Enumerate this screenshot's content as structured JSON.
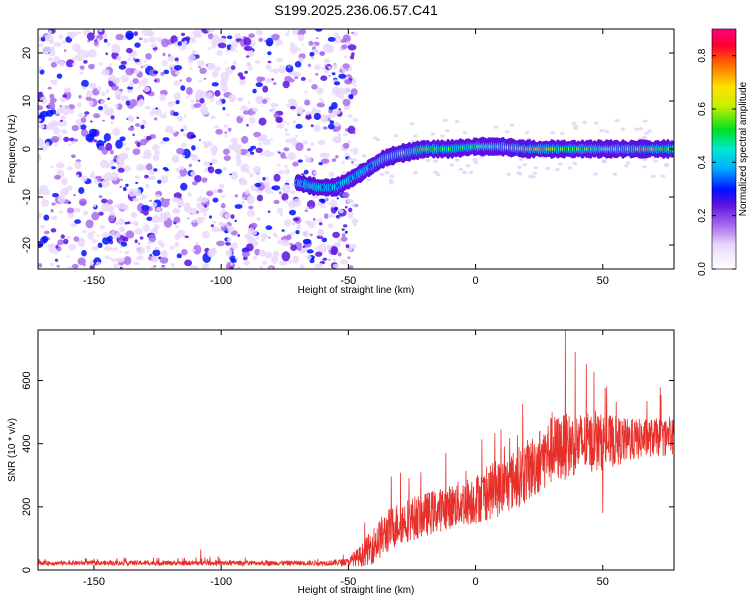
{
  "title": "S199.2025.236.06.57.C41",
  "colors": {
    "trace": "#e8302b",
    "axis": "#000000"
  },
  "chart_data": [
    {
      "type": "heatmap",
      "name": "spectrogram",
      "xlabel": "Height of straight line (km)",
      "ylabel": "Frequency (Hz)",
      "xlim": [
        -172,
        78
      ],
      "ylim": [
        -25,
        25
      ],
      "xticks": [
        -150,
        -100,
        -50,
        0,
        50
      ],
      "yticks": [
        -20,
        -10,
        0,
        10,
        20
      ],
      "noise_region_x": [
        -172,
        -50
      ],
      "signal_track": {
        "x": [
          -70,
          -62,
          -55,
          -48,
          -42,
          -36,
          -30,
          -20,
          -10,
          0,
          10,
          20,
          30,
          40,
          50,
          60,
          75
        ],
        "freq": [
          -7,
          -8,
          -8,
          -6,
          -4,
          -2,
          -1,
          0,
          0,
          0.5,
          0.5,
          0,
          0,
          0,
          0,
          0,
          0
        ]
      },
      "colorbar": {
        "label": "Normalized spectral amplitude",
        "range": [
          0.0,
          0.9
        ],
        "ticks": [
          "0.0",
          "0.2",
          "0.4",
          "0.6",
          "0.8"
        ]
      }
    },
    {
      "type": "line",
      "name": "snr",
      "xlabel": "Height of straight line (km)",
      "ylabel": "SNR (10 * v/v)",
      "xlim": [
        -172,
        78
      ],
      "ylim": [
        0,
        760
      ],
      "xticks": [
        -150,
        -100,
        -50,
        0,
        50
      ],
      "yticks": [
        0,
        200,
        400,
        600
      ],
      "envelope": {
        "x": [
          -172,
          -60,
          -50,
          -45,
          -40,
          -35,
          -30,
          -20,
          -10,
          0,
          10,
          20,
          30,
          40,
          50,
          60,
          70,
          78
        ],
        "mean": [
          22,
          22,
          25,
          45,
          80,
          120,
          150,
          175,
          200,
          225,
          260,
          310,
          380,
          400,
          405,
          410,
          420,
          420
        ],
        "spread": [
          7,
          8,
          12,
          35,
          60,
          70,
          70,
          70,
          70,
          80,
          90,
          100,
          110,
          100,
          90,
          70,
          60,
          60
        ]
      },
      "peaks": [
        {
          "x": 35.3,
          "y": 760
        },
        {
          "x": -108,
          "y": 65
        },
        {
          "x": 50,
          "y": 180
        }
      ]
    }
  ]
}
